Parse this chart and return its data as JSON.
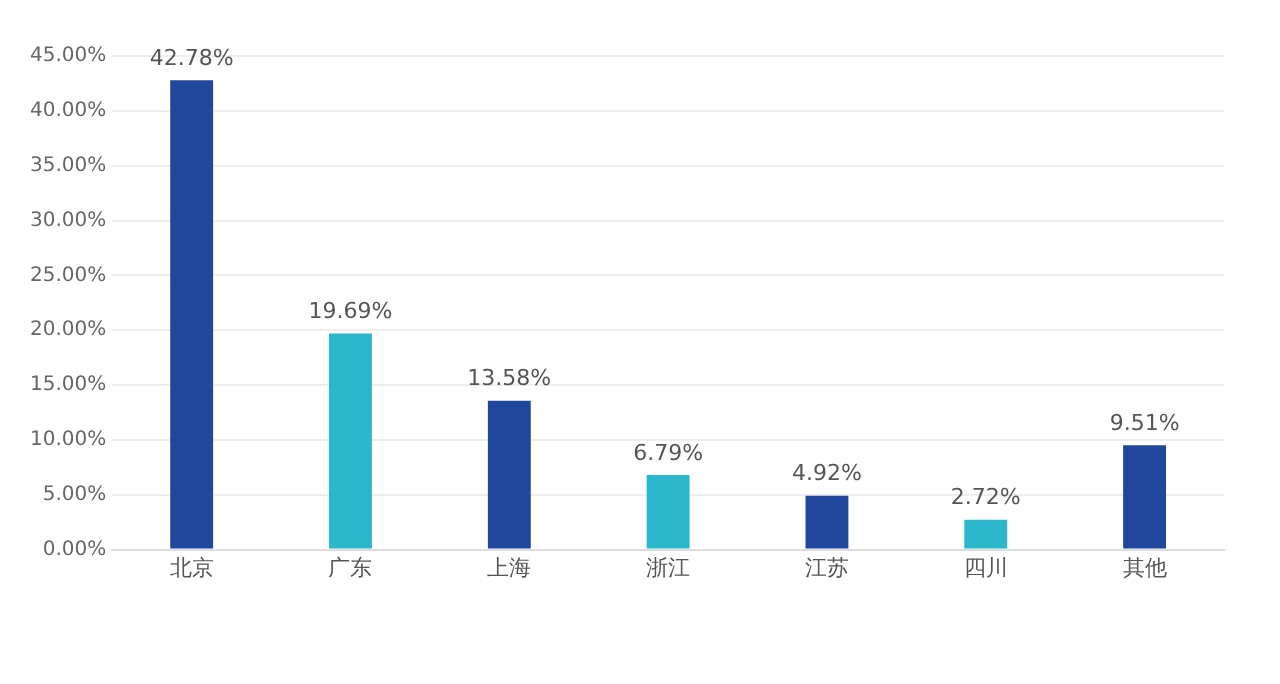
{
  "chart_data": {
    "type": "bar",
    "categories": [
      "北京",
      "广东",
      "上海",
      "浙江",
      "江苏",
      "四川",
      "其他"
    ],
    "values": [
      42.78,
      19.69,
      13.58,
      6.79,
      4.92,
      2.72,
      9.51
    ],
    "colors": [
      "#20479b",
      "#2bb8cc",
      "#20479b",
      "#2bb8cc",
      "#20479b",
      "#2bb8cc",
      "#20479b"
    ],
    "value_labels": [
      "42.78%",
      "19.69%",
      "13.58%",
      "6.79%",
      "4.92%",
      "2.72%",
      "9.51%"
    ],
    "ylim": [
      0,
      45
    ],
    "yticks": [
      {
        "value": 0,
        "label": "0.00%"
      },
      {
        "value": 5,
        "label": "5.00%"
      },
      {
        "value": 10,
        "label": "10.00%"
      },
      {
        "value": 15,
        "label": "15.00%"
      },
      {
        "value": 20,
        "label": "20.00%"
      },
      {
        "value": 25,
        "label": "25.00%"
      },
      {
        "value": 30,
        "label": "30.00%"
      },
      {
        "value": 35,
        "label": "35.00%"
      },
      {
        "value": 40,
        "label": "40.00%"
      },
      {
        "value": 45,
        "label": "45.00%"
      }
    ],
    "grid": "y",
    "legend": false
  }
}
